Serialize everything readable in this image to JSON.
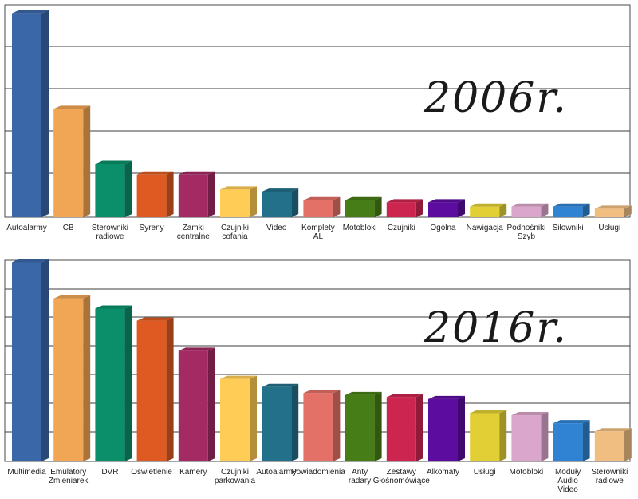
{
  "chart_data": [
    {
      "type": "bar",
      "title": "2006r.",
      "xlabel": "",
      "ylabel": "",
      "ylim": [
        0,
        100
      ],
      "grid": true,
      "categories": [
        [
          "Autoalarmy"
        ],
        [
          "CB"
        ],
        [
          "Sterowniki",
          "radiowe"
        ],
        [
          "Syreny"
        ],
        [
          "Zamki",
          "centralne"
        ],
        [
          "Czujniki",
          "cofania"
        ],
        [
          "Video"
        ],
        [
          "Komplety",
          "AL"
        ],
        [
          "Motobloki"
        ],
        [
          "Czujniki"
        ],
        [
          "Ogólna"
        ],
        [
          "Nawigacja"
        ],
        [
          "Podnośniki",
          "Szyb"
        ],
        [
          "Siłowniki"
        ],
        [
          "Usługi"
        ]
      ],
      "values": [
        96,
        51,
        25,
        20,
        20,
        13,
        12,
        8,
        8,
        7,
        7,
        5,
        5,
        5,
        4
      ],
      "colors": [
        "#3a67a8",
        "#f1a656",
        "#0b8f6a",
        "#de5a22",
        "#a32a63",
        "#ffcc55",
        "#227089",
        "#e47167",
        "#467d16",
        "#cc2650",
        "#5d0ca0",
        "#e1cf35",
        "#dba6cb",
        "#2f83d2",
        "#f1be82"
      ]
    },
    {
      "type": "bar",
      "title": "2016r.",
      "xlabel": "",
      "ylabel": "",
      "ylim": [
        0,
        100
      ],
      "grid": true,
      "categories": [
        [
          "Multimedia"
        ],
        [
          "Emulatory",
          "Zmieniarek"
        ],
        [
          "DVR"
        ],
        [
          "Oświetlenie"
        ],
        [
          "Kamery"
        ],
        [
          "Czujniki",
          "parkowania"
        ],
        [
          "Autoalarmy"
        ],
        [
          "Powiadomienia"
        ],
        [
          "Anty",
          "radary"
        ],
        [
          "Zestawy",
          "Głośnomówiące"
        ],
        [
          "Alkomaty"
        ],
        [
          "Usługi"
        ],
        [
          "Motobloki"
        ],
        [
          "Moduły",
          "Audio",
          "Video"
        ],
        [
          "Sterowniki",
          "radiowe"
        ]
      ],
      "values": [
        99,
        81,
        76,
        70,
        55,
        41,
        37,
        34,
        33,
        32,
        31,
        24,
        23,
        19,
        15
      ],
      "colors": [
        "#3a67a8",
        "#f1a656",
        "#0b8f6a",
        "#de5a22",
        "#a32a63",
        "#ffcc55",
        "#227089",
        "#e47167",
        "#467d16",
        "#cc2650",
        "#5d0ca0",
        "#e1cf35",
        "#dba6cb",
        "#2f83d2",
        "#f1be82"
      ]
    }
  ]
}
